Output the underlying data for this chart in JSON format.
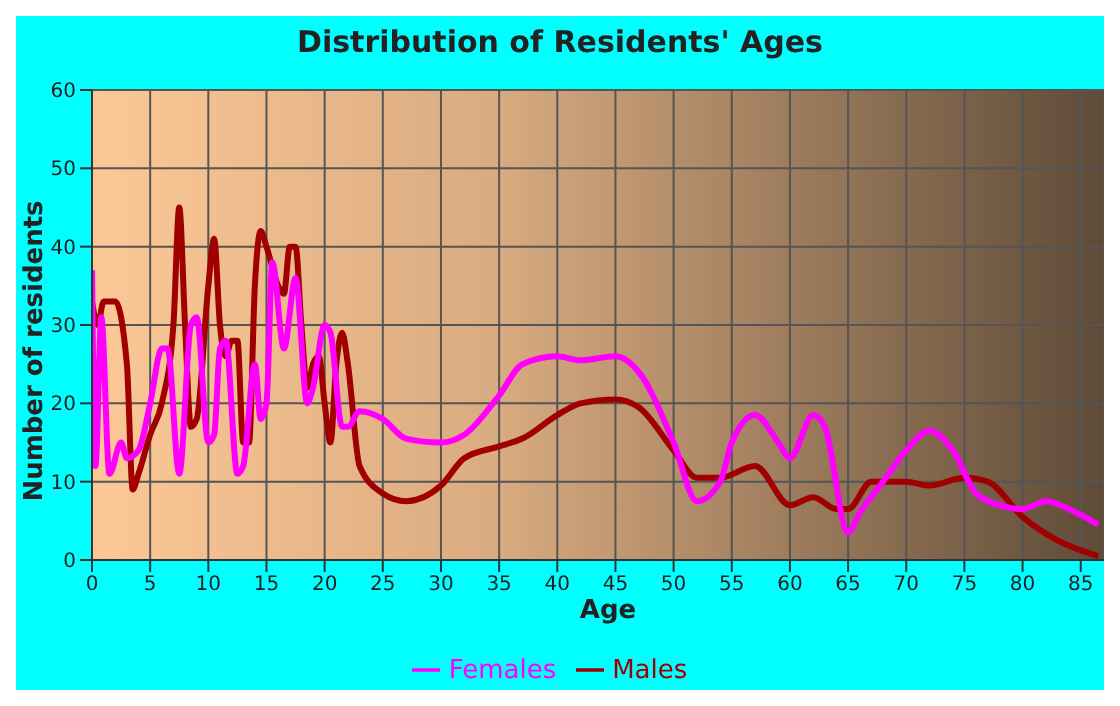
{
  "chart_data": {
    "type": "line",
    "title": "Distribution of Residents' Ages",
    "xlabel": "Age",
    "ylabel": "Number of residents",
    "xlim": [
      0,
      87
    ],
    "xticks": [
      0,
      5,
      10,
      15,
      20,
      25,
      30,
      35,
      40,
      45,
      50,
      55,
      60,
      65,
      70,
      75,
      80,
      85
    ],
    "ylim": [
      0,
      60
    ],
    "yticks": [
      0,
      10,
      20,
      30,
      40,
      50,
      60
    ],
    "grid": true,
    "legend": "bottom",
    "marker": "none",
    "line_style": "solid",
    "series": [
      {
        "name": "Males",
        "color": "#a00000",
        "x": [
          0,
          0.5,
          1,
          2,
          3,
          3.5,
          4,
          5,
          6,
          7,
          7.5,
          8,
          8.5,
          9,
          10,
          10.5,
          11,
          11.5,
          12,
          12.5,
          13,
          13.5,
          14,
          14.5,
          15,
          16,
          16.5,
          17,
          17.5,
          18,
          18.5,
          19,
          19.5,
          20,
          20.5,
          21,
          21.5,
          22,
          23,
          25,
          27,
          30,
          32,
          35,
          37,
          40,
          42,
          45,
          47,
          50,
          52,
          54,
          57,
          60,
          62,
          64,
          65,
          67,
          70,
          72,
          75,
          77,
          80,
          83,
          86.5
        ],
        "values": [
          33,
          30,
          33,
          33,
          25,
          9,
          11,
          16,
          20,
          30,
          45,
          30,
          17,
          18,
          35,
          41,
          30,
          26,
          28,
          28,
          15,
          15,
          35,
          42,
          40,
          35,
          34,
          40,
          40,
          30,
          22,
          25,
          26,
          20,
          15,
          25,
          29,
          25,
          12,
          8.5,
          7.5,
          9.5,
          13,
          14.5,
          15.5,
          18.5,
          20,
          20.5,
          19.5,
          14,
          10.5,
          10.5,
          12,
          7,
          8,
          6.5,
          6.5,
          10,
          10,
          9.5,
          10.5,
          10,
          5.5,
          2.5,
          0.5
        ]
      },
      {
        "name": "Females",
        "color": "#ff00ff",
        "x": [
          0,
          0.3,
          0.8,
          1.5,
          2.5,
          3,
          4,
          5,
          6,
          6.5,
          7.5,
          8.5,
          9,
          10,
          10.5,
          11,
          11.5,
          12.5,
          13,
          14,
          14.5,
          15,
          15.5,
          16.5,
          17.5,
          18.5,
          19,
          20,
          20.5,
          21.5,
          22,
          23,
          25,
          27,
          30,
          32,
          35,
          37,
          40,
          42,
          45,
          47,
          50,
          52,
          54,
          55,
          57,
          59,
          60,
          62,
          63,
          65,
          66,
          68,
          70,
          72,
          74,
          76,
          78,
          80,
          82,
          84,
          86.5
        ],
        "values": [
          37,
          12,
          31,
          11,
          15,
          13,
          14,
          20,
          27,
          27,
          11,
          30,
          31,
          15,
          16,
          27,
          28,
          11,
          12,
          25,
          18,
          20,
          38,
          27,
          36,
          20,
          22,
          30,
          29,
          17,
          17,
          19,
          18,
          15.5,
          15,
          16,
          21,
          25,
          26,
          25.5,
          26,
          24,
          15,
          7.5,
          10,
          15,
          18.5,
          15,
          13,
          18.5,
          17,
          3.5,
          6,
          10,
          14,
          16.5,
          14,
          8.5,
          7,
          6.5,
          7.5,
          6.5,
          4.5
        ]
      }
    ]
  }
}
